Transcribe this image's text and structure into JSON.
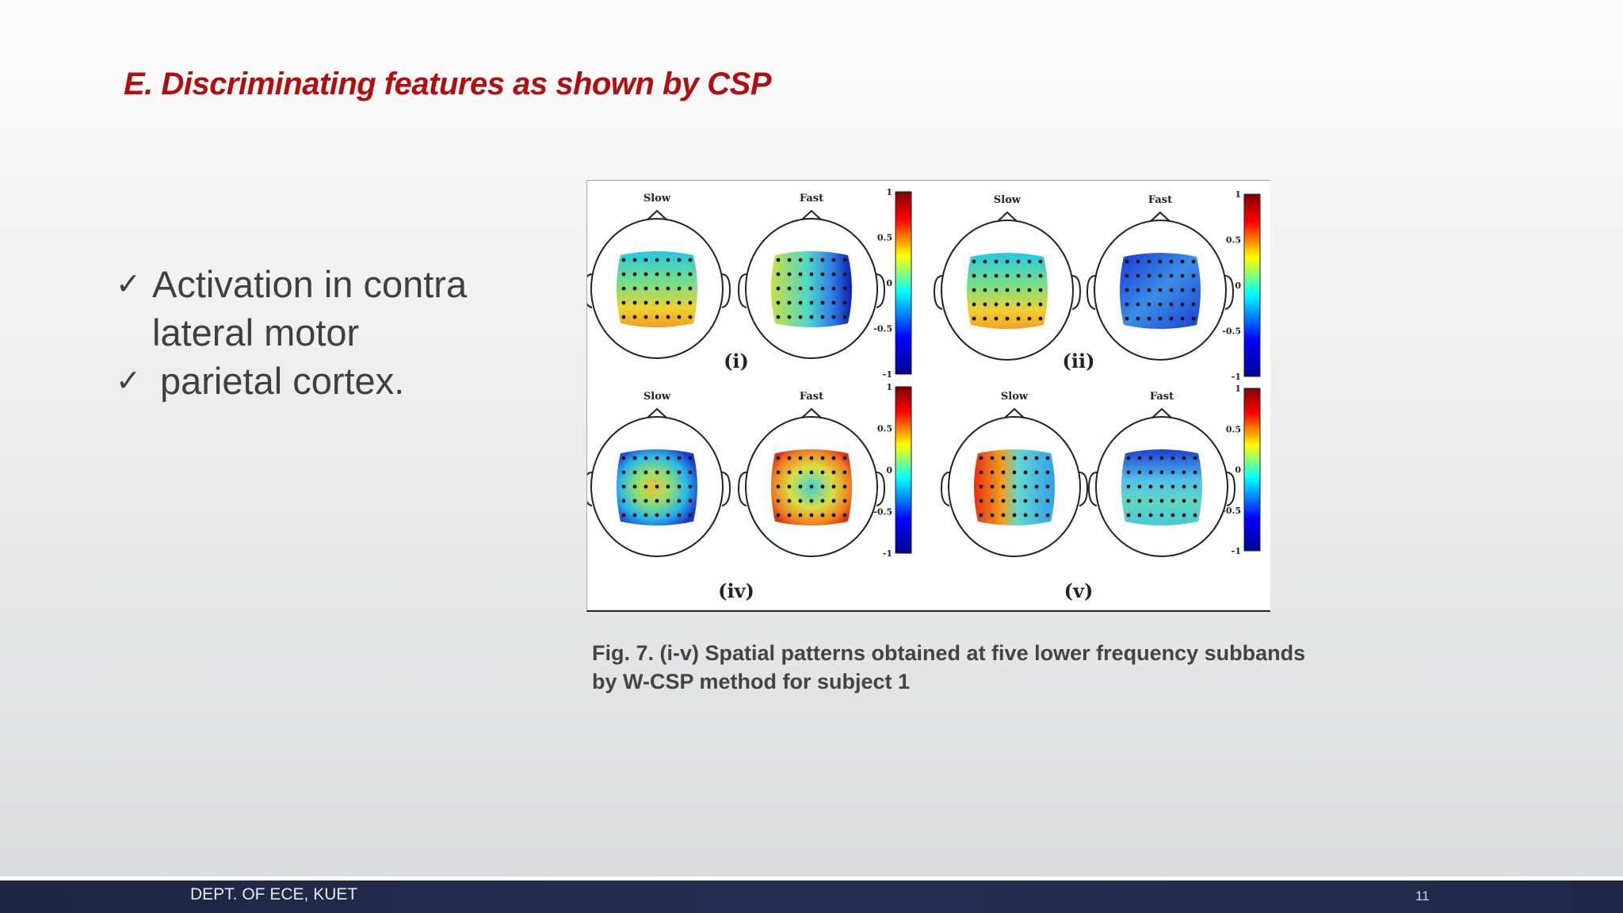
{
  "slide": {
    "title": "E. Discriminating features as shown by CSP",
    "bullets": [
      {
        "mark": "✓",
        "text": "Activation in contra\nlateral motor"
      },
      {
        "mark": "✓",
        "text": "parietal cortex."
      }
    ]
  },
  "figure": {
    "panels": [
      {
        "label": "(i)",
        "slow": "Slow",
        "fast": "Fast",
        "slow_map": "cyan-top-yellow-bottom",
        "fast_map": "yellow-left-blue-right"
      },
      {
        "label": "(ii)",
        "slow": "Slow",
        "fast": "Fast",
        "slow_map": "cyan-top-yellow-bottom",
        "fast_map": "blue"
      },
      {
        "label": "(iv)",
        "slow": "Slow",
        "fast": "Fast",
        "slow_map": "blue-edges-yellow-center",
        "fast_map": "orange-edges-cyan-center"
      },
      {
        "label": "(v)",
        "slow": "Slow",
        "fast": "Fast",
        "slow_map": "orange-left-cyan-right",
        "fast_map": "red-blue-top-cyan-bottom"
      }
    ],
    "colorbar_ticks": [
      "1",
      "0.5",
      "0",
      "-0.5",
      "-1"
    ],
    "colormap": [
      "#00008f",
      "#0000ff",
      "#00ffff",
      "#ffff00",
      "#ff0000",
      "#800000"
    ]
  },
  "caption": "Fig. 7. (i-v) Spatial patterns obtained at five lower frequency subbands\nby W-CSP method for subject 1",
  "footer": {
    "dept": "DEPT. OF ECE, KUET",
    "page": "11"
  }
}
